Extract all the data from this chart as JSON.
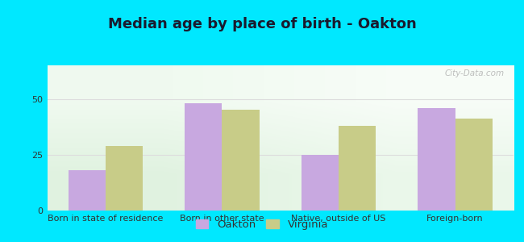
{
  "title": "Median age by place of birth - Oakton",
  "categories": [
    "Born in state of residence",
    "Born in other state",
    "Native, outside of US",
    "Foreign-born"
  ],
  "oakton_values": [
    18,
    48,
    25,
    46
  ],
  "virginia_values": [
    29,
    45,
    38,
    41
  ],
  "oakton_color": "#c8a8e0",
  "virginia_color": "#c8cc88",
  "background_outer": "#00e8ff",
  "ylim": [
    0,
    65
  ],
  "yticks": [
    0,
    25,
    50
  ],
  "bar_width": 0.32,
  "legend_labels": [
    "Oakton",
    "Virginia"
  ],
  "title_fontsize": 13,
  "axis_label_fontsize": 8,
  "legend_fontsize": 9.5,
  "grid_color": "#dddddd",
  "title_color": "#1a1a2e"
}
